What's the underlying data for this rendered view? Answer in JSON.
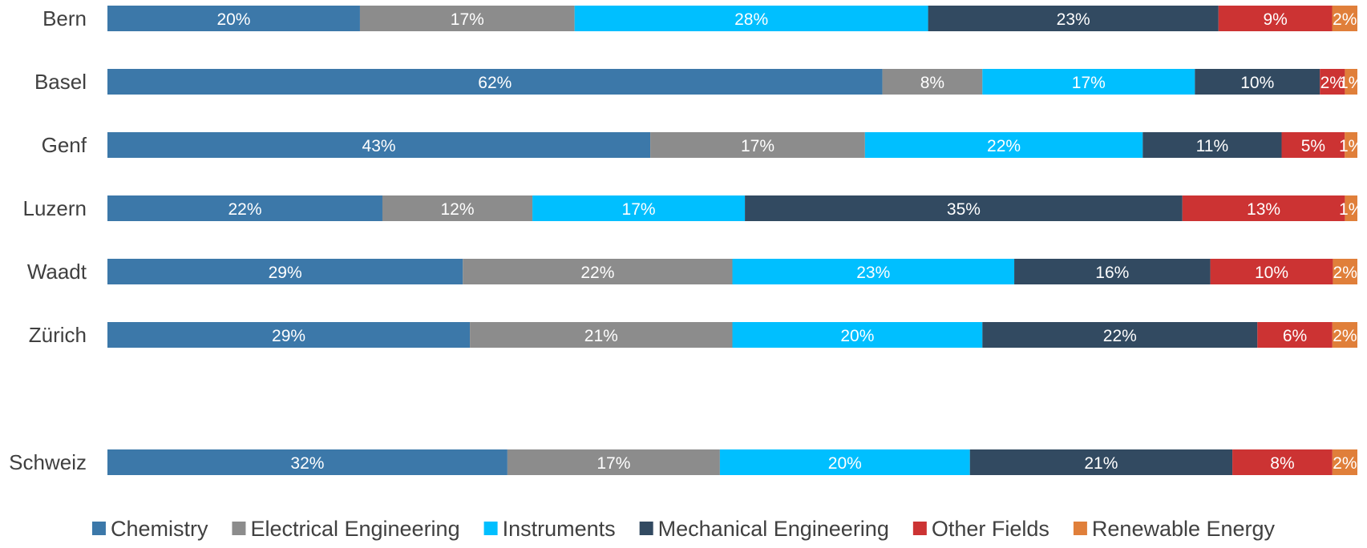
{
  "chart_data": {
    "type": "bar",
    "orientation": "horizontal",
    "stacked": "100%",
    "categories": [
      "Bern",
      "Basel",
      "Genf",
      "Luzern",
      "Waadt",
      "Zürich",
      "Schweiz"
    ],
    "series": [
      {
        "name": "Chemistry",
        "color": "#3c78a9",
        "values": [
          20,
          62,
          43,
          22,
          29,
          29,
          32
        ],
        "labels": [
          "20%",
          "62%",
          "43%",
          "22%",
          "29%",
          "29%",
          "32%"
        ]
      },
      {
        "name": "Electrical Engineering",
        "color": "#8c8c8c",
        "values": [
          17,
          8,
          17,
          12,
          22,
          21,
          17
        ],
        "labels": [
          "17%",
          "8%",
          "17%",
          "12%",
          "22%",
          "21%",
          "17%"
        ]
      },
      {
        "name": "Instruments",
        "color": "#00bfff",
        "values": [
          28,
          17,
          22,
          17,
          23,
          20,
          20
        ],
        "labels": [
          "28%",
          "17%",
          "22%",
          "17%",
          "23%",
          "20%",
          "20%"
        ]
      },
      {
        "name": "Mechanical Engineering",
        "color": "#324a61",
        "values": [
          23,
          10,
          11,
          35,
          16,
          22,
          21
        ],
        "labels": [
          "23%",
          "10%",
          "11%",
          "35%",
          "16%",
          "22%",
          "21%"
        ]
      },
      {
        "name": "Other Fields",
        "color": "#cc3333",
        "values": [
          9,
          2,
          5,
          13,
          10,
          6,
          8
        ],
        "labels": [
          "9%",
          "2%",
          "5%",
          "13%",
          "10%",
          "6%",
          "8%"
        ]
      },
      {
        "name": "Renewable Energy",
        "color": "#e07f3a",
        "values": [
          2,
          1,
          1,
          1,
          2,
          2,
          2
        ],
        "labels": [
          "2%",
          "1%",
          "1%",
          "1%",
          "2%",
          "2%",
          "2%"
        ]
      }
    ],
    "legend": "bottom",
    "grid": false,
    "title": ""
  }
}
